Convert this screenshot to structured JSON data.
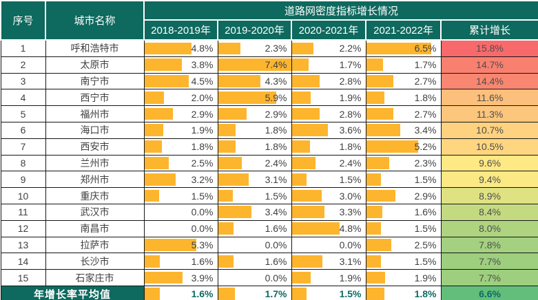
{
  "colors": {
    "header_bg": "#0E695E",
    "bar_fill": "#FDB52E",
    "value_text": "#404040",
    "summary_text": "#0E6A64",
    "grid": "#151515",
    "scale_red": "#F8696B",
    "scale_yellow": "#FFEB84",
    "scale_green": "#63BE7B"
  },
  "chart_data": {
    "type": "table",
    "title": "道路网密度指标增长情况",
    "columns": [
      "序号",
      "城市名称",
      "2018-2019年",
      "2019-2020年",
      "2020-2021年",
      "2021-2022年",
      "累计增长"
    ],
    "value_format": "percent_one_decimal",
    "bar_scale_max": 7.4,
    "rows": [
      {
        "index": "1",
        "city": "呼和浩特市",
        "values": [
          4.8,
          2.3,
          2.2,
          6.5
        ],
        "cumulative": 15.8,
        "cumulative_color": "#F8696B"
      },
      {
        "index": "2",
        "city": "太原市",
        "values": [
          3.8,
          7.4,
          1.7,
          1.7
        ],
        "cumulative": 14.7,
        "cumulative_color": "#F9806F"
      },
      {
        "index": "3",
        "city": "南宁市",
        "values": [
          4.5,
          4.3,
          2.8,
          2.7
        ],
        "cumulative": 14.4,
        "cumulative_color": "#F98670"
      },
      {
        "index": "4",
        "city": "西宁市",
        "values": [
          2.0,
          5.9,
          1.9,
          1.8
        ],
        "cumulative": 11.6,
        "cumulative_color": "#FDC07C"
      },
      {
        "index": "5",
        "city": "福州市",
        "values": [
          2.9,
          2.9,
          2.8,
          2.7
        ],
        "cumulative": 11.3,
        "cumulative_color": "#FDC67D"
      },
      {
        "index": "6",
        "city": "海口市",
        "values": [
          1.9,
          1.8,
          3.6,
          3.4
        ],
        "cumulative": 10.7,
        "cumulative_color": "#FED27F"
      },
      {
        "index": "7",
        "city": "西安市",
        "values": [
          1.8,
          1.8,
          1.8,
          5.2
        ],
        "cumulative": 10.5,
        "cumulative_color": "#FED680"
      },
      {
        "index": "8",
        "city": "兰州市",
        "values": [
          2.5,
          2.4,
          2.4,
          2.3
        ],
        "cumulative": 9.6,
        "cumulative_color": "#FFE984"
      },
      {
        "index": "9",
        "city": "郑州市",
        "values": [
          3.2,
          3.1,
          1.5,
          1.5
        ],
        "cumulative": 9.4,
        "cumulative_color": "#FAE984"
      },
      {
        "index": "10",
        "city": "重庆市",
        "values": [
          1.5,
          1.5,
          3.0,
          2.9
        ],
        "cumulative": 8.9,
        "cumulative_color": "#DFE282"
      },
      {
        "index": "11",
        "city": "武汉市",
        "values": [
          0.0,
          3.4,
          3.3,
          1.6
        ],
        "cumulative": 8.4,
        "cumulative_color": "#C4DA81"
      },
      {
        "index": "12",
        "city": "南昌市",
        "values": [
          0.0,
          1.6,
          4.8,
          1.5
        ],
        "cumulative": 8.0,
        "cumulative_color": "#AED47F"
      },
      {
        "index": "13",
        "city": "拉萨市",
        "values": [
          5.3,
          0.0,
          0.0,
          2.5
        ],
        "cumulative": 7.8,
        "cumulative_color": "#A4D17F"
      },
      {
        "index": "14",
        "city": "长沙市",
        "values": [
          1.6,
          1.6,
          3.1,
          1.5
        ],
        "cumulative": 7.7,
        "cumulative_color": "#9ECF7E"
      },
      {
        "index": "15",
        "city": "石家庄市",
        "values": [
          3.9,
          0.0,
          1.9,
          1.9
        ],
        "cumulative": 7.7,
        "cumulative_color": "#9ECF7E"
      }
    ],
    "summary": {
      "label": "年增长率平均值",
      "values": [
        1.6,
        1.7,
        1.5,
        1.8
      ],
      "cumulative": 6.6,
      "cumulative_color": "#63BE7B"
    }
  }
}
